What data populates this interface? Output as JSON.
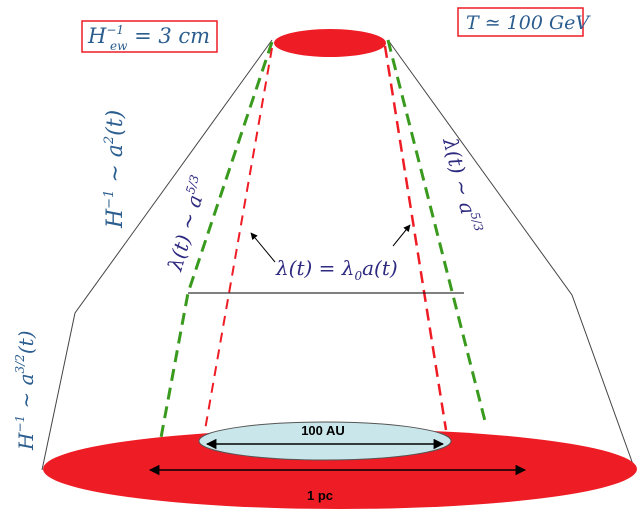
{
  "labels": {
    "hubble_radius_now": "H",
    "hubble_radius_now_sub": "ew",
    "hubble_radius_now_sup": "−1",
    "hubble_radius_now_value": " = 3 cm",
    "temperature": "T ≃ 100 GeV",
    "hubble_scaling_top": "H",
    "hubble_scaling_top_sup": "−1",
    "hubble_scaling_top_rhs": " ∼ a",
    "hubble_scaling_top_exp": "2",
    "hubble_scaling_top_arg": "(t)",
    "hubble_scaling_bottom": "H",
    "hubble_scaling_bottom_sup": "−1",
    "hubble_scaling_bottom_rhs": " ∼ a",
    "hubble_scaling_bottom_exp": "3/2",
    "hubble_scaling_bottom_arg": "(t)",
    "lambda_left": "λ(t) ∼ a",
    "lambda_left_exp": "5/3",
    "lambda_right": "λ(t) ∼ a",
    "lambda_right_exp": "5/3",
    "lambda_center": "λ(t) = λ",
    "lambda_center_sub": "0",
    "lambda_center_rhs": "a(t)",
    "small_disk": "100 AU",
    "large_disk": "1 pc"
  },
  "colors": {
    "disk_red": "#ee1c25",
    "disk_light": "#c9e7ea",
    "green_dash": "#3a9a1e",
    "red_dash": "#ee1c25",
    "text_blue": "#2b5d8e",
    "text_purple": "#2e2a7f",
    "box_red": "#ee1c25"
  }
}
